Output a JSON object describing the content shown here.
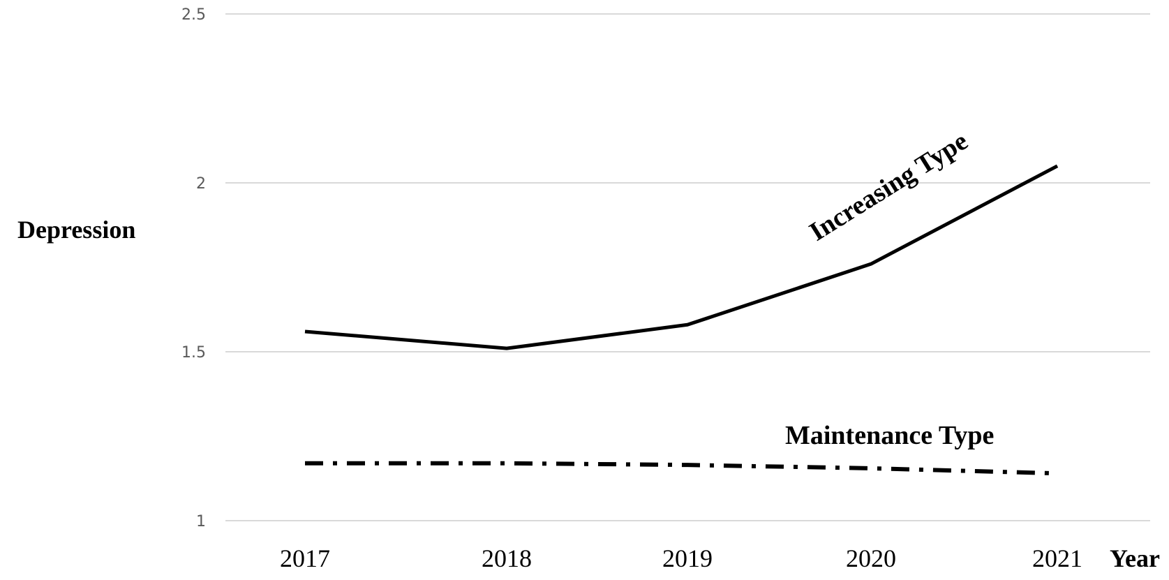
{
  "chart_data": {
    "type": "line",
    "xlabel": "Year",
    "ylabel": "Depression",
    "categories": [
      "2017",
      "2018",
      "2019",
      "2020",
      "2021"
    ],
    "ylim": [
      1,
      2.5
    ],
    "yticks": [
      "1",
      "1.5",
      "2",
      "2.5"
    ],
    "grid": true,
    "series": [
      {
        "name": "Increasing Type",
        "values": [
          1.56,
          1.51,
          1.58,
          1.76,
          2.05
        ],
        "style": "solid",
        "color": "#000000"
      },
      {
        "name": "Maintenance Type",
        "values": [
          1.17,
          1.17,
          1.165,
          1.155,
          1.14
        ],
        "style": "dash-dot",
        "color": "#000000"
      }
    ]
  }
}
